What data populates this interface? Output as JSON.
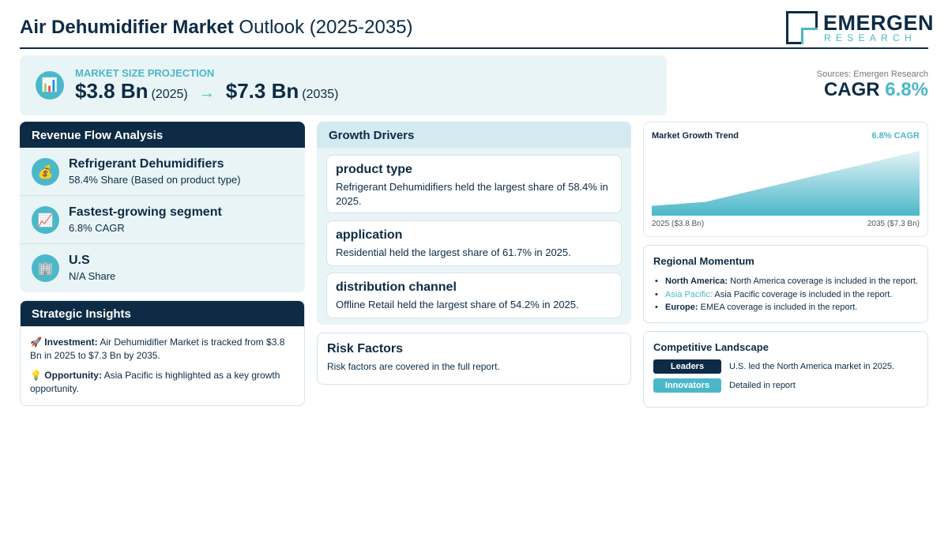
{
  "header": {
    "title_bold": "Air Dehumidifier Market",
    "title_rest": "Outlook (2025-2035)",
    "logo_name": "EMERGEN",
    "logo_sub": "RESEARCH"
  },
  "projection": {
    "label": "MARKET SIZE PROJECTION",
    "icon": "bar-chart-icon",
    "start_value": "$3.8 Bn",
    "start_year": "(2025)",
    "arrow": "→",
    "end_value": "$7.3 Bn",
    "end_year": "(2035)"
  },
  "sources": "Sources: Emergen Research",
  "cagr": {
    "label": "CAGR",
    "value": "6.8%"
  },
  "revenue_flow": {
    "title": "Revenue Flow Analysis",
    "items": [
      {
        "icon": "money-bag-icon",
        "title": "Refrigerant Dehumidifiers",
        "subtitle": "58.4% Share (Based on product type)"
      },
      {
        "icon": "trend-chart-icon",
        "title": "Fastest-growing segment",
        "subtitle": "6.8% CAGR"
      },
      {
        "icon": "office-building-icon",
        "title": "U.S",
        "subtitle": "N/A Share"
      }
    ]
  },
  "strategic": {
    "title": "Strategic Insights",
    "items": [
      {
        "icon": "rocket-icon",
        "label": "Investment:",
        "text": "Air Dehumidifier Market is tracked from $3.8 Bn in 2025 to $7.3 Bn by 2035."
      },
      {
        "icon": "lightbulb-icon",
        "label": "Opportunity:",
        "text": "Asia Pacific is highlighted as a key growth opportunity."
      }
    ]
  },
  "drivers": {
    "title": "Growth Drivers",
    "items": [
      {
        "title": "product type",
        "text": "Refrigerant Dehumidifiers held the largest share of 58.4% in 2025."
      },
      {
        "title": "application",
        "text": "Residential held the largest share of 61.7% in 2025."
      },
      {
        "title": "distribution channel",
        "text": "Offline Retail held the largest share of 54.2% in 2025."
      }
    ]
  },
  "risk": {
    "title": "Risk Factors",
    "text": "Risk factors are covered in the full report."
  },
  "trend": {
    "title": "Market Growth Trend",
    "cagr_label": "6.8% CAGR",
    "start_label": "2025 ($3.8 Bn)",
    "end_label": "2035 ($7.3 Bn)"
  },
  "chart_data": {
    "type": "area",
    "title": "Market Growth Trend",
    "x": [
      "2025",
      "2035"
    ],
    "series": [
      {
        "values": [
          3.8,
          7.3
        ]
      }
    ],
    "colors": {
      "fill_top": "#e3f3f6",
      "fill_bottom": "#4bb8c9"
    }
  },
  "regional": {
    "title": "Regional Momentum",
    "items": [
      {
        "region": "North America:",
        "text": "North America coverage is included in the report.",
        "highlight": false
      },
      {
        "region": "Asia Pacific:",
        "text": "Asia Pacific coverage is included in the report.",
        "highlight": true
      },
      {
        "region": "Europe:",
        "text": "EMEA coverage is included in the report.",
        "highlight": false
      }
    ]
  },
  "competitive": {
    "title": "Competitive Landscape",
    "rows": [
      {
        "badge": "Leaders",
        "text": "U.S. led the North America market in 2025."
      },
      {
        "badge": "Innovators",
        "text": "Detailed in report"
      }
    ]
  },
  "colors": {
    "navy": "#0d2b45",
    "teal": "#4bb8c9",
    "panel": "#e9f4f6"
  }
}
